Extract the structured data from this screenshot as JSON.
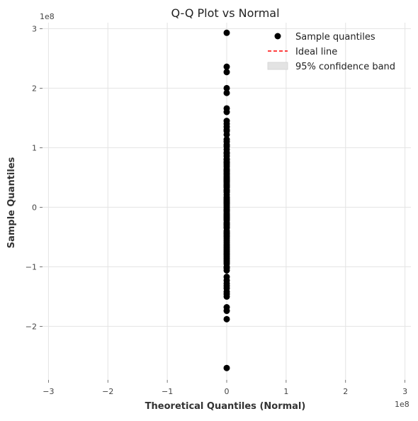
{
  "chart_data": {
    "type": "scatter",
    "title": "Q-Q Plot vs Normal",
    "xlabel": "Theoretical Quantiles (Normal)",
    "ylabel": "Sample Quantiles",
    "x_exponent_label": "1e8",
    "y_exponent_label": "1e8",
    "xlim": [
      -310000000.0,
      310000000.0
    ],
    "ylim": [
      -290000000.0,
      310000000.0
    ],
    "x_ticks": [
      {
        "value": -300000000.0,
        "label": "−3"
      },
      {
        "value": -200000000.0,
        "label": "−2"
      },
      {
        "value": -100000000.0,
        "label": "−1"
      },
      {
        "value": 0,
        "label": "0"
      },
      {
        "value": 100000000.0,
        "label": "1"
      },
      {
        "value": 200000000.0,
        "label": "2"
      },
      {
        "value": 300000000.0,
        "label": "3"
      }
    ],
    "y_ticks": [
      {
        "value": -200000000.0,
        "label": "−2"
      },
      {
        "value": -100000000.0,
        "label": "−1"
      },
      {
        "value": 0,
        "label": "0"
      },
      {
        "value": 100000000.0,
        "label": "1"
      },
      {
        "value": 200000000.0,
        "label": "2"
      },
      {
        "value": 300000000.0,
        "label": "3"
      }
    ],
    "grid": true,
    "legend_position": "top-right",
    "legend": [
      {
        "label": "Sample quantiles",
        "kind": "marker",
        "color": "#000000"
      },
      {
        "label": "Ideal line",
        "kind": "dashed-line",
        "color": "#ff0000"
      },
      {
        "label": "95% confidence band",
        "kind": "band",
        "color": "#d9d9d9"
      }
    ],
    "series": [
      {
        "name": "Sample quantiles",
        "color": "#000000",
        "x": [
          0,
          0,
          0,
          0,
          0,
          0,
          0,
          0,
          0,
          0,
          0,
          0,
          0,
          0,
          0,
          0,
          0,
          0,
          0,
          0,
          0,
          0,
          0,
          0,
          0,
          0,
          0,
          0,
          0,
          0,
          0,
          0,
          0,
          0,
          0,
          0,
          0,
          0,
          0,
          0,
          0,
          0,
          0,
          0,
          0,
          0,
          0,
          0,
          0,
          0,
          0,
          0,
          0,
          0,
          0,
          0,
          0,
          0,
          0,
          0,
          0,
          0,
          0,
          0,
          0,
          0,
          0,
          0,
          0,
          0,
          0,
          0,
          0,
          0,
          0,
          0,
          0,
          0,
          0,
          0,
          0,
          0,
          0,
          0,
          0,
          0,
          0,
          0,
          0,
          0,
          0,
          0,
          0,
          0,
          0,
          0,
          0,
          0,
          0,
          0,
          0,
          0,
          0,
          0,
          0
        ],
        "y": [
          293000000.0,
          236000000.0,
          227000000.0,
          200000000.0,
          192000000.0,
          166000000.0,
          160000000.0,
          145000000.0,
          140000000.0,
          130000000.0,
          128000000.0,
          114000000.0,
          110000000.0,
          105000000.0,
          97000000.0,
          92000000.0,
          86000000.0,
          80000000.0,
          74000000.0,
          68000000.0,
          64000000.0,
          60000000.0,
          55000000.0,
          50000000.0,
          46000000.0,
          42000000.0,
          37000000.0,
          33000000.0,
          29000000.0,
          25000000.0,
          21000000.0,
          17000000.0,
          13000000.0,
          9000000.0,
          5000000.0,
          2000000.0,
          -1000000.0,
          -4000000.0,
          -7000000.0,
          -10000000.0,
          -14000000.0,
          -18000000.0,
          -22000000.0,
          -26000000.0,
          -30000000.0,
          -35000000.0,
          -40000000.0,
          -45000000.0,
          -50000000.0,
          -56000000.0,
          -62000000.0,
          -68000000.0,
          -74000000.0,
          -80000000.0,
          -86000000.0,
          -92000000.0,
          -100000000.0,
          -106000000.0,
          -123000000.0,
          -128000000.0,
          -136000000.0,
          -142000000.0,
          -150000000.0,
          -168000000.0,
          -174000000.0,
          -188000000.0,
          -270000000.0,
          71000000.0,
          57000000.0,
          39000000.0,
          11000000.0,
          -28000000.0,
          -53000000.0,
          -77000000.0,
          -95000000.0,
          -146000000.0,
          122000000.0,
          81000000.0,
          35000000.0,
          -12000000.0,
          -65000000.0,
          90000000.0,
          48000000.0,
          7000000.0,
          -20000000.0,
          -43000000.0,
          -59000000.0,
          -83000000.0,
          -102000000.0,
          135000000.0,
          102000000.0,
          62000000.0,
          27000000.0,
          -5000000.0,
          -33000000.0,
          -71000000.0,
          -117000000.0,
          76000000.0,
          52000000.0,
          15000000.0,
          -16000000.0,
          -48000000.0,
          -89000000.0,
          -132000000.0,
          44000000.0
        ]
      }
    ]
  }
}
